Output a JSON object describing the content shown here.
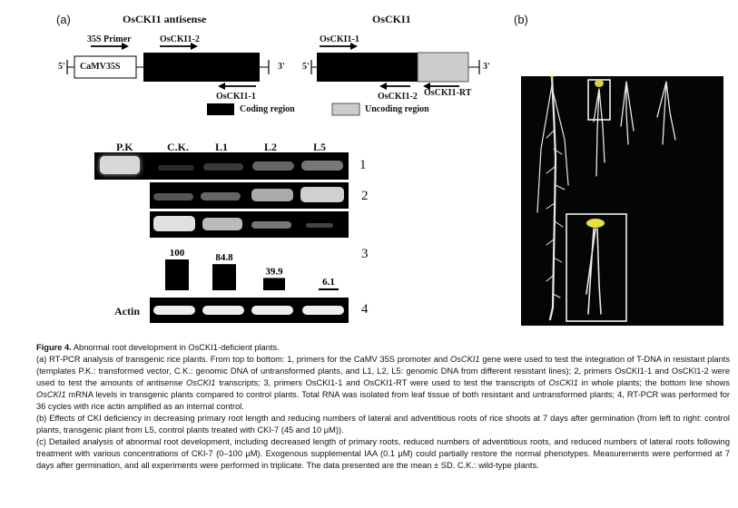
{
  "panel_a_label": "(a)",
  "panel_b_label": "(b)",
  "constructs": {
    "antisense": {
      "title_prefix": "Os",
      "title_rest": "CKI1 antisense",
      "primer_35s": "35S Primer",
      "primer_f": "OsCKI1-2",
      "promoter": "CaMV35S",
      "primer_r": "OsCKI1-1",
      "five": "5'",
      "three": "3'"
    },
    "sense": {
      "title_prefix": "Os",
      "title_rest": "CKI1",
      "primer_f": "OsCKI1-1",
      "primer_r1": "OsCKI1-2",
      "primer_r2": "OsCKI1-RT",
      "five": "5'",
      "three": "3'"
    },
    "legend": {
      "coding": "Coding region",
      "uncoding": "Uncoding region"
    }
  },
  "gel": {
    "headers": [
      "P.K",
      "C.K.",
      "L1",
      "L2",
      "L5"
    ],
    "row_labels": [
      "1",
      "2",
      "3",
      "4"
    ],
    "actin_label": "Actin"
  },
  "chart_data": {
    "type": "bar",
    "categories": [
      "C.K.",
      "L1",
      "L2",
      "L5"
    ],
    "values": [
      100,
      84.8,
      39.9,
      6.1
    ],
    "labels": [
      "100",
      "84.8",
      "39.9",
      "6.1"
    ],
    "ylim": [
      0,
      100
    ]
  },
  "caption": {
    "title_bold": "Figure 4.",
    "title_rest": " Abnormal root development in OsCKI1-deficient plants.",
    "a1": "(a) RT-PCR analysis of transgenic rice plants. From top to bottom: 1, primers for the CaMV 35S promoter and ",
    "a1_i": "OsCKI1",
    "a2": " gene were used to test the integration of T-DNA in resistant plants (templates P.K.: transformed vector, C.K.: genomic DNA of untransformed plants, and L1, L2, L5: genomic DNA from different resistant lines); 2, primers OsCKI1-1 and OsCKI1-2 were used to test the amounts of antisense ",
    "a2_i": "OsCKI1",
    "a3": " transcripts; 3, primers OsCKI1-1 and OsCKI1-RT were used to test the transcripts of ",
    "a3_i": "OsCKI1",
    "a4": " in whole plants; the bottom line shows ",
    "a4_i": "OsCKI1",
    "a5": " mRNA levels in transgenic plants compared to control plants. Total RNA was isolated from leaf tissue of both resistant and untransformed plants; 4, RT-PCR was performed for 36 cycles with rice actin amplified as an internal control.",
    "b": "(b) Effects of CKI deficiency in decreasing primary root length and reducing numbers of lateral and adventitious roots of rice shoots at 7 days after germination (from left to right: control plants, transgenic plant from L5, control plants treated with CKI-7 (45 and 10 μM)).",
    "c": "(c) Detailed analysis of abnormal root development, including decreased length of primary roots, reduced numbers of adventitious roots, and reduced numbers of lateral roots following treatment with various concentrations of CKI-7 (0–100 μM). Exogenous supplemental IAA (0.1 μM) could partially restore the normal phenotypes. Measurements were performed at 7 days after germination, and all experiments were performed in triplicate. The data presented are the mean ± SD. C.K.: wild-type plants."
  }
}
